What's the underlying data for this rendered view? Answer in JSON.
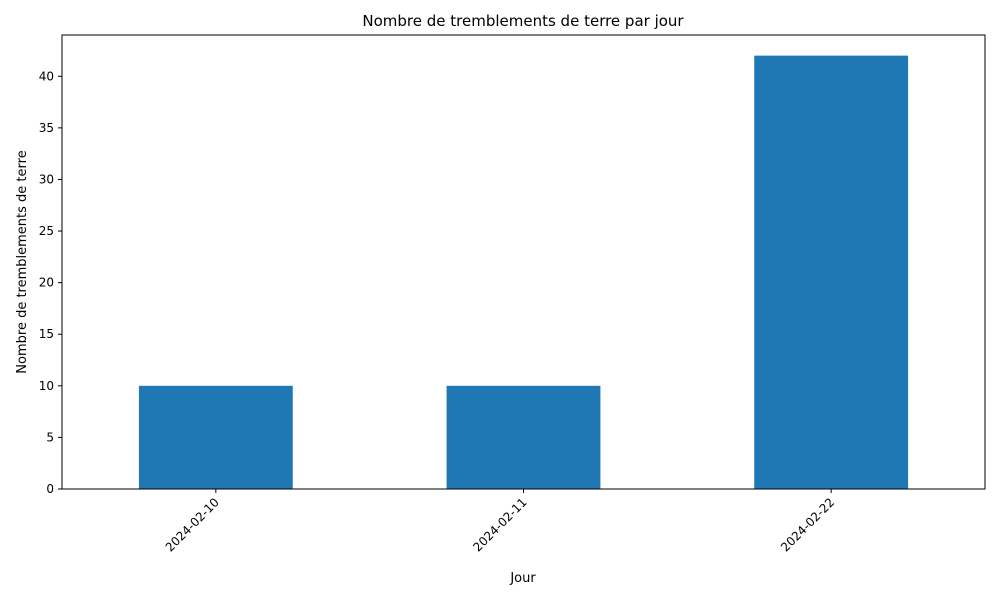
{
  "chart_data": {
    "type": "bar",
    "title": "Nombre de tremblements de terre par jour",
    "xlabel": "Jour",
    "ylabel": "Nombre de tremblements de terre",
    "categories": [
      "2024-02-10",
      "2024-02-11",
      "2024-02-22"
    ],
    "values": [
      10,
      10,
      42
    ],
    "ylim": [
      0,
      44
    ],
    "yticks": [
      0,
      5,
      10,
      15,
      20,
      25,
      30,
      35,
      40
    ],
    "grid": false,
    "legend": "none",
    "bar_color": "#1f77b4",
    "xtick_rotation": 45
  }
}
